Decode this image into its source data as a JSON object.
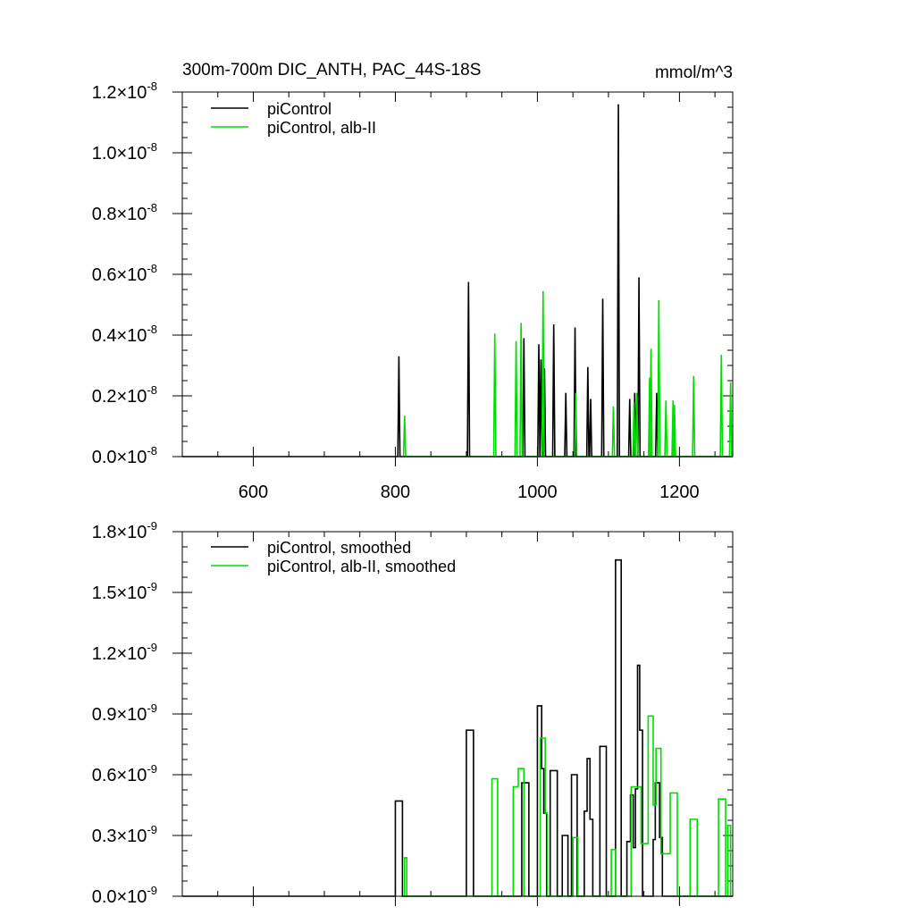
{
  "chart_data": [
    {
      "type": "line",
      "title": "300m-700m DIC_ANTH, PAC_44S-18S",
      "units": "mmol/m^3",
      "xlim": [
        500,
        1275
      ],
      "ylim": [
        0,
        1.2e-08
      ],
      "x_ticks": [
        600,
        800,
        1000,
        1200
      ],
      "x_tick_labels": [
        "600",
        "800",
        "1000",
        "1200"
      ],
      "y_ticks": [
        0,
        2e-09,
        4e-09,
        6e-09,
        8e-09,
        1e-08,
        1.2e-08
      ],
      "y_tick_mantissa": [
        "0.0",
        "0.2",
        "0.4",
        "0.6",
        "0.8",
        "1.0",
        "1.2"
      ],
      "y_tick_times": "×",
      "y_tick_base": "10",
      "y_tick_exp": "-8",
      "legend_position": "top-left",
      "series": [
        {
          "name": "piControl",
          "color": "#000000",
          "spikes": [
            [
              805,
              3.3e-09
            ],
            [
              903,
              5.75e-09
            ],
            [
              981,
              3.9e-09
            ],
            [
              1002,
              3.7e-09
            ],
            [
              1005,
              3.2e-09
            ],
            [
              1010,
              2.9e-09
            ],
            [
              1023,
              4.35e-09
            ],
            [
              1040,
              2.1e-09
            ],
            [
              1053,
              4.25e-09
            ],
            [
              1071,
              2.95e-09
            ],
            [
              1075,
              1.9e-09
            ],
            [
              1092,
              5.2e-09
            ],
            [
              1114,
              1.16e-08
            ],
            [
              1130,
              1.9e-09
            ],
            [
              1137,
              2.1e-09
            ],
            [
              1143,
              5.9e-09
            ],
            [
              1168,
              2.1e-09
            ]
          ]
        },
        {
          "name": "piControl, alb-II",
          "color": "#00dd00",
          "spikes": [
            [
              813,
              1.35e-09
            ],
            [
              940,
              4.05e-09
            ],
            [
              970,
              3.8e-09
            ],
            [
              977,
              4.4e-09
            ],
            [
              1008,
              5.45e-09
            ],
            [
              1054,
              2.1e-09
            ],
            [
              1107,
              1.65e-09
            ],
            [
              1136,
              1.8e-09
            ],
            [
              1140,
              2.1e-09
            ],
            [
              1158,
              2.6e-09
            ],
            [
              1160,
              3.55e-09
            ],
            [
              1171,
              5.15e-09
            ],
            [
              1181,
              1.85e-09
            ],
            [
              1191,
              1.85e-09
            ],
            [
              1193,
              1.7e-09
            ],
            [
              1220,
              2.65e-09
            ],
            [
              1259,
              3.35e-09
            ],
            [
              1272,
              2.45e-09
            ]
          ]
        }
      ]
    },
    {
      "type": "line",
      "xlim": [
        500,
        1275
      ],
      "ylim": [
        0,
        1.8e-09
      ],
      "x_ticks": [
        600,
        800,
        1000,
        1200
      ],
      "y_ticks": [
        0,
        3e-10,
        6e-10,
        9e-10,
        1.2e-09,
        1.5e-09,
        1.8e-09
      ],
      "y_tick_mantissa": [
        "0.0",
        "0.3",
        "0.6",
        "0.9",
        "1.2",
        "1.5",
        "1.8"
      ],
      "y_tick_times": "×",
      "y_tick_base": "10",
      "y_tick_exp": "-9",
      "legend_position": "top-left",
      "series": [
        {
          "name": "piControl, smoothed",
          "color": "#000000",
          "steps": [
            [
              800,
              4.7e-10,
              810
            ],
            [
              900,
              8.2e-10,
              910
            ],
            [
              978,
              5.6e-10,
              988
            ],
            [
              1000,
              9.4e-10,
              1006
            ],
            [
              1006,
              6.3e-10,
              1009
            ],
            [
              1009,
              4.1e-10,
              1013
            ],
            [
              1018,
              6.2e-10,
              1028
            ],
            [
              1035,
              3e-10,
              1043
            ],
            [
              1048,
              6e-10,
              1056
            ],
            [
              1066,
              4.2e-10,
              1070
            ],
            [
              1070,
              6.8e-10,
              1074
            ],
            [
              1074,
              3.8e-10,
              1078
            ],
            [
              1088,
              7.4e-10,
              1097
            ],
            [
              1110,
              1.66e-09,
              1118
            ],
            [
              1126,
              2.7e-10,
              1131
            ],
            [
              1131,
              5e-10,
              1135
            ],
            [
              1135,
              2.4e-10,
              1138
            ],
            [
              1138,
              5.3e-10,
              1141
            ],
            [
              1141,
              1.14e-09,
              1144
            ],
            [
              1144,
              8.2e-10,
              1148
            ],
            [
              1163,
              2.8e-10,
              1166
            ],
            [
              1166,
              5.6e-10,
              1172
            ],
            [
              1172,
              2.9e-10,
              1176
            ]
          ]
        },
        {
          "name": "piControl, alb-II, smoothed",
          "color": "#00dd00",
          "steps": [
            [
              813,
              1.9e-10,
              816
            ],
            [
              936,
              5.8e-10,
              944
            ],
            [
              966,
              5.4e-10,
              973
            ],
            [
              973,
              6.3e-10,
              981
            ],
            [
              1004,
              7.8e-10,
              1011
            ],
            [
              1011,
              4.1e-10,
              1014
            ],
            [
              1050,
              2.9e-10,
              1057
            ],
            [
              1104,
              2.3e-10,
              1110
            ],
            [
              1132,
              5.4e-10,
              1146
            ],
            [
              1146,
              2.6e-10,
              1156
            ],
            [
              1156,
              8.9e-10,
              1163
            ],
            [
              1163,
              4.5e-10,
              1167
            ],
            [
              1167,
              7.3e-10,
              1174
            ],
            [
              1174,
              2.1e-10,
              1187
            ],
            [
              1187,
              5.1e-10,
              1197
            ],
            [
              1215,
              3.8e-10,
              1225
            ],
            [
              1255,
              4.8e-10,
              1265
            ],
            [
              1268,
              3.5e-10,
              1272
            ]
          ]
        }
      ]
    }
  ]
}
